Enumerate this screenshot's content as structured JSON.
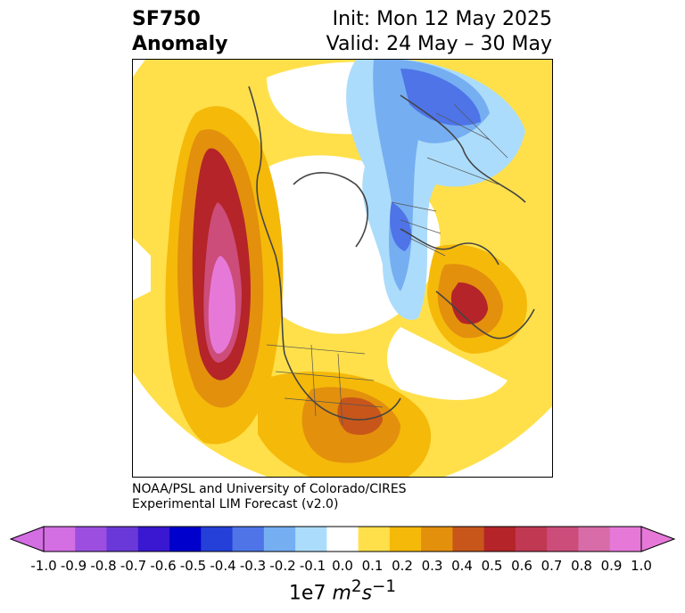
{
  "title": {
    "variable": "SF750",
    "kind": "Anomaly",
    "init": "Init: Mon 12 May 2025",
    "valid": "Valid: 24 May – 30 May"
  },
  "credit": {
    "line1": "NOAA/PSL and University of Colorado/CIRES",
    "line2": "Experimental LIM Forecast (v2.0)"
  },
  "colorbar": {
    "ticks": [
      "-1.0",
      "-0.9",
      "-0.8",
      "-0.7",
      "-0.6",
      "-0.5",
      "-0.4",
      "-0.3",
      "-0.2",
      "-0.1",
      "0.0",
      "0.1",
      "0.2",
      "0.3",
      "0.4",
      "0.5",
      "0.6",
      "0.7",
      "0.8",
      "0.9",
      "1.0"
    ],
    "colors": [
      "#d36ee3",
      "#9b4ee0",
      "#6a38d8",
      "#3a17d0",
      "#0000cc",
      "#2440d8",
      "#4e74e8",
      "#76aef2",
      "#acdcfb",
      "#ffffff",
      "#ffe04a",
      "#f5b90a",
      "#e3900d",
      "#c8561a",
      "#b42428",
      "#c13852",
      "#cc4c7a",
      "#d86ca8",
      "#e679d8"
    ],
    "unit_base": "1e7 ",
    "unit_m": "m",
    "unit_m_exp": "2",
    "unit_s": "s",
    "unit_s_exp": "−1"
  }
}
